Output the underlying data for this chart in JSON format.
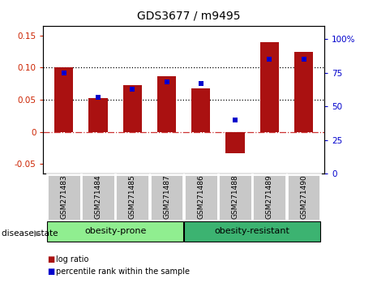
{
  "title": "GDS3677 / m9495",
  "samples": [
    "GSM271483",
    "GSM271484",
    "GSM271485",
    "GSM271487",
    "GSM271486",
    "GSM271488",
    "GSM271489",
    "GSM271490"
  ],
  "log_ratio": [
    0.1,
    0.053,
    0.073,
    0.087,
    0.068,
    -0.033,
    0.14,
    0.125
  ],
  "percentile_rank": [
    75,
    57,
    63,
    68,
    67,
    40,
    85,
    85
  ],
  "groups": [
    {
      "label": "obesity-prone",
      "indices": [
        0,
        1,
        2,
        3
      ],
      "color": "#90ee90"
    },
    {
      "label": "obesity-resistant",
      "indices": [
        4,
        5,
        6,
        7
      ],
      "color": "#3cb371"
    }
  ],
  "bar_color": "#aa1111",
  "dot_color": "#0000cc",
  "ylim_left": [
    -0.065,
    0.165
  ],
  "ylim_right": [
    0,
    110
  ],
  "yticks_left": [
    -0.05,
    0,
    0.05,
    0.1,
    0.15
  ],
  "yticks_right": [
    0,
    25,
    50,
    75,
    100
  ],
  "hlines": [
    0.05,
    0.1
  ],
  "zero_line_color": "#cc3333",
  "bar_width": 0.55,
  "dot_size": 18,
  "label_color_left": "#cc2200",
  "label_color_right": "#0000cc",
  "legend_log_ratio": "log ratio",
  "legend_percentile": "percentile rank within the sample",
  "disease_state_label": "disease state",
  "group_label_color_prone": "#90ee90",
  "group_label_color_resistant": "#3cb371",
  "tick_fontsize": 7.5,
  "title_fontsize": 10
}
